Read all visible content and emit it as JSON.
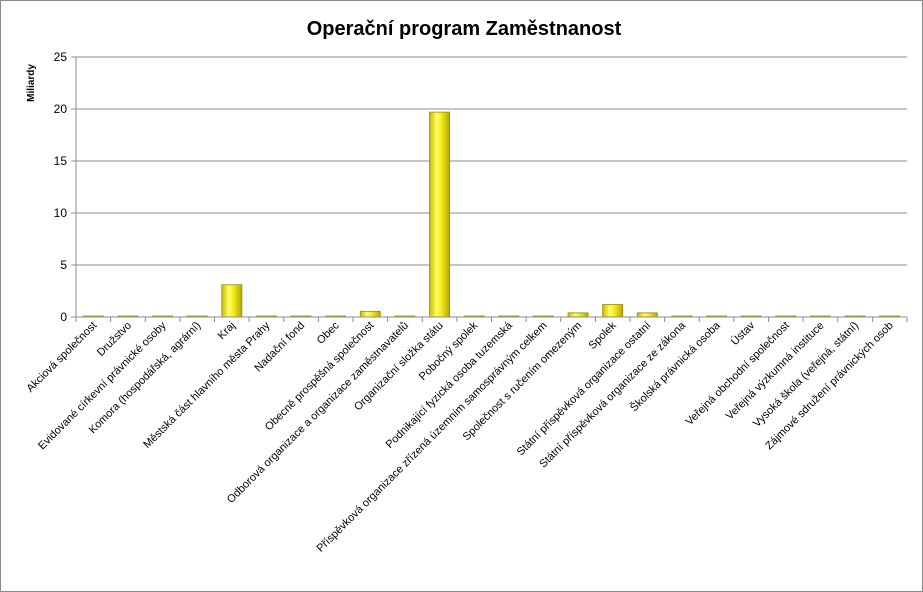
{
  "chart_data": {
    "type": "bar",
    "title": "Operační program Zaměstnanost",
    "xlabel": "",
    "ylabel": "Miliardy",
    "ylim": [
      0,
      25
    ],
    "yticks": [
      0,
      5,
      10,
      15,
      20,
      25
    ],
    "grid": true,
    "legend": "none",
    "bar_color": "#e6d900",
    "categories": [
      "Akciová společnost",
      "Družstvo",
      "Evidované církevní právnické osoby",
      "Komora (hospodářská, agrární)",
      "Kraj",
      "Městská část hlavního města Prahy",
      "Nadační fond",
      "Obec",
      "Obecně prospěšná společnost",
      "Odborová organizace a organizace zaměstnavatelů",
      "Organizační složka státu",
      "Pobočný spolek",
      "Podnikající fyzická osoba tuzemská",
      "Příspěvková organizace zřízená územním samosprávným celkem",
      "Společnost s ručením omezeným",
      "Spolek",
      "Státní příspěvková organizace ostatní",
      "Státní příspěvková organizace ze zákona",
      "Školská právnická osoba",
      "Ústav",
      "Veřejná obchodní společnost",
      "Veřejná výzkumná instituce",
      "Vysoká škola (veřejná, státní)",
      "Zájmové sdružení právnických osob"
    ],
    "values": [
      0.02,
      0.02,
      0.02,
      0.02,
      3.1,
      0.02,
      0.02,
      0.02,
      0.55,
      0.05,
      19.7,
      0.02,
      0.02,
      0.05,
      0.4,
      1.2,
      0.4,
      0.02,
      0.02,
      0.02,
      0.02,
      0.02,
      0.02,
      0.02
    ]
  }
}
